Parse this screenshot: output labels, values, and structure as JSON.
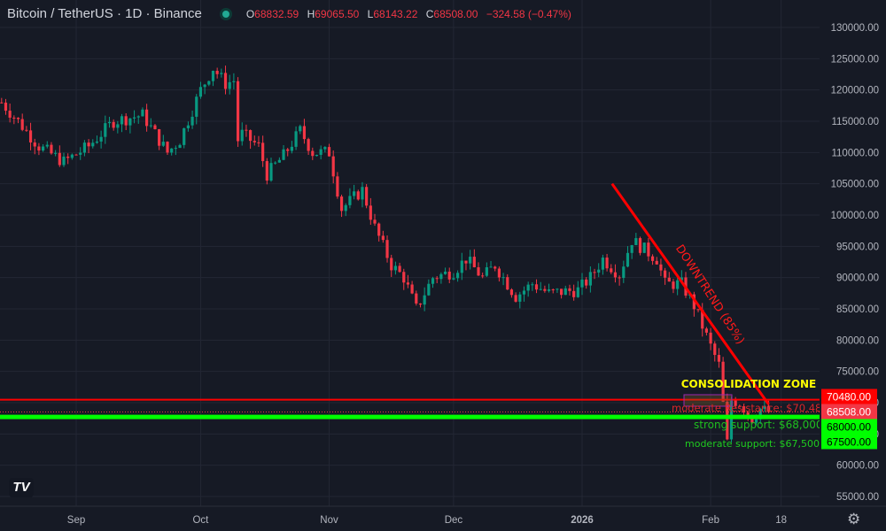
{
  "header": {
    "title": "Bitcoin / TetherUS · 1D · Binance",
    "status": "market-open",
    "open_label": "O",
    "open": "68832.59",
    "high_label": "H",
    "high": "69065.50",
    "low_label": "L",
    "low": "68143.22",
    "close_label": "C",
    "close": "68508.00",
    "change": "−324.58 (−0.47%)"
  },
  "logo": "TV",
  "icons": {
    "settings": "gear-icon",
    "status": "status-dot-icon"
  },
  "colors": {
    "up": "#089981",
    "down": "#f23645",
    "resistance": "#ff0000",
    "support": "#00ff00",
    "zone_label": "#ffff00",
    "background": "#161a25"
  },
  "chart_data": {
    "type": "candlestick",
    "symbol": "BTCUSDT",
    "ylim": [
      55000,
      130000
    ],
    "y_ticks": [
      "130000.00",
      "125000.00",
      "120000.00",
      "115000.00",
      "110000.00",
      "105000.00",
      "100000.00",
      "95000.00",
      "90000.00",
      "85000.00",
      "80000.00",
      "75000.00",
      "70000.00",
      "65000.00",
      "60000.00",
      "55000.00"
    ],
    "x_ticks": [
      {
        "label": "Sep",
        "date": "2025-09-01"
      },
      {
        "label": "Oct",
        "date": "2025-10-01"
      },
      {
        "label": "Nov",
        "date": "2025-11-01"
      },
      {
        "label": "Dec",
        "date": "2025-12-01"
      },
      {
        "label": "2026",
        "date": "2026-01-01",
        "bold": true
      },
      {
        "label": "Feb",
        "date": "2026-02-01"
      },
      {
        "label": "18",
        "date": "2026-02-18"
      }
    ],
    "grid": true,
    "approx_closes": [
      [
        "2025-08-14",
        118000
      ],
      [
        "2025-08-18",
        115000
      ],
      [
        "2025-08-23",
        111000
      ],
      [
        "2025-08-29",
        108500
      ],
      [
        "2025-09-04",
        111000
      ],
      [
        "2025-09-10",
        115000
      ],
      [
        "2025-09-17",
        116000
      ],
      [
        "2025-09-23",
        110000
      ],
      [
        "2025-09-26",
        112000
      ],
      [
        "2025-10-01",
        120000
      ],
      [
        "2025-10-04",
        123500
      ],
      [
        "2025-10-07",
        121000
      ],
      [
        "2025-10-09",
        121500
      ],
      [
        "2025-10-10",
        112000
      ],
      [
        "2025-10-11",
        113000
      ],
      [
        "2025-10-15",
        111000
      ],
      [
        "2025-10-17",
        106500
      ],
      [
        "2025-10-21",
        109500
      ],
      [
        "2025-10-25",
        113500
      ],
      [
        "2025-10-28",
        110000
      ],
      [
        "2025-11-01",
        110000
      ],
      [
        "2025-11-04",
        101000
      ],
      [
        "2025-11-09",
        104000
      ],
      [
        "2025-11-12",
        98000
      ],
      [
        "2025-11-16",
        92000
      ],
      [
        "2025-11-19",
        90000
      ],
      [
        "2025-11-22",
        85000
      ],
      [
        "2025-11-26",
        90000
      ],
      [
        "2025-12-01",
        91000
      ],
      [
        "2025-12-04",
        93000
      ],
      [
        "2025-12-08",
        90000
      ],
      [
        "2025-12-11",
        92000
      ],
      [
        "2025-12-16",
        87000
      ],
      [
        "2025-12-20",
        89000
      ],
      [
        "2025-12-24",
        87500
      ],
      [
        "2025-12-31",
        88000
      ],
      [
        "2026-01-03",
        90000
      ],
      [
        "2026-01-06",
        93000
      ],
      [
        "2026-01-10",
        90500
      ],
      [
        "2026-01-13",
        96000
      ],
      [
        "2026-01-19",
        93000
      ],
      [
        "2026-01-21",
        89000
      ],
      [
        "2026-01-25",
        89000
      ],
      [
        "2026-01-28",
        85500
      ],
      [
        "2026-02-01",
        79000
      ],
      [
        "2026-02-03",
        76000
      ],
      [
        "2026-02-05",
        63500
      ],
      [
        "2026-02-06",
        70500
      ],
      [
        "2026-02-08",
        70000
      ],
      [
        "2026-02-11",
        67500
      ],
      [
        "2026-02-13",
        69000
      ],
      [
        "2026-02-15",
        68508
      ]
    ],
    "price_lines": [
      {
        "price": 70480,
        "label": "70480.00",
        "style": "solid",
        "color": "#ff0000"
      },
      {
        "price": 68508,
        "label": "68508.00",
        "style": "dotted",
        "color": "#f23645",
        "current": true
      },
      {
        "price": 68000,
        "label": "68000.00",
        "style": "thick",
        "color": "#00ff00"
      },
      {
        "price": 67500,
        "label": "67500.00",
        "style": "none",
        "color": "#00ff00"
      }
    ],
    "annotations": {
      "zone_title": "CONSOLIDATION ZONE",
      "resistance": "moderate Resistance: $70,480",
      "strong_support": "strong support: $68,000",
      "moderate_support": "moderate support: $67,500",
      "trend": "DOWNTREND (85%)",
      "trend_line": [
        [
          "2026-01-11",
          105000
        ],
        [
          "2026-02-15",
          70000
        ]
      ]
    }
  }
}
